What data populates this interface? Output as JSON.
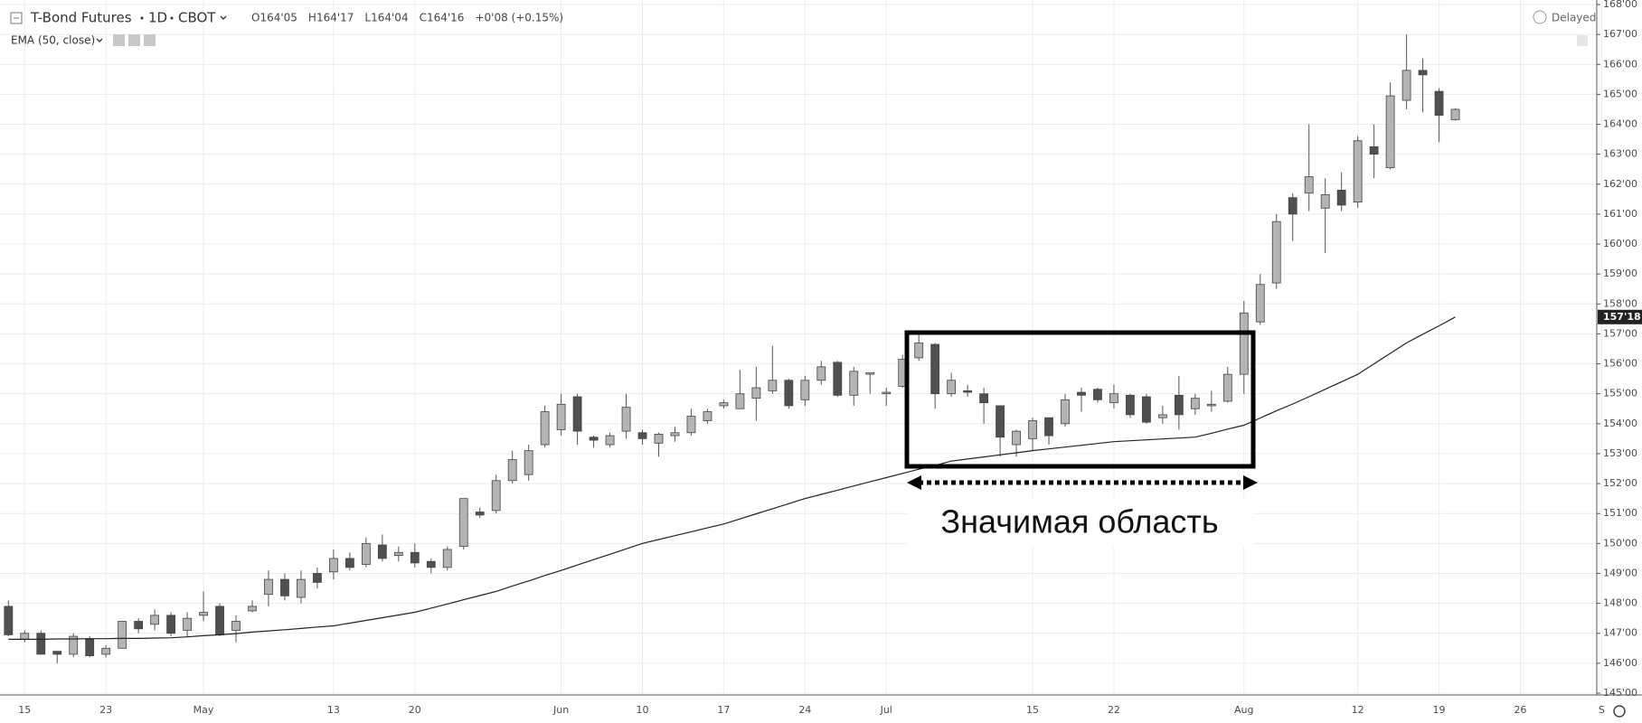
{
  "chart_data": {
    "type": "candlestick",
    "symbol": "T-Bond Futures",
    "interval": "1D",
    "exchange": "CBOT",
    "ohlc_labels": [
      "O164'05",
      "H164'17",
      "L164'04",
      "C164'16",
      "+0'08 (+0.15%)"
    ],
    "status": "Delayed",
    "annotation": "Значимая область",
    "up_color": "#b4b4b4",
    "down_color": "#505050",
    "grid": true,
    "categories": [
      null,
      "15",
      null,
      null,
      null,
      null,
      "23",
      null,
      null,
      null,
      null,
      null,
      "May",
      null,
      null,
      null,
      null,
      null,
      null,
      null,
      "13",
      null,
      null,
      null,
      null,
      "20",
      null,
      null,
      null,
      null,
      null,
      null,
      null,
      null,
      "Jun",
      null,
      null,
      null,
      null,
      "10",
      null,
      null,
      null,
      null,
      "17",
      null,
      null,
      null,
      null,
      "24",
      null,
      null,
      null,
      null,
      "Jul",
      null,
      null,
      null,
      null,
      null,
      null,
      null,
      null,
      "15",
      null,
      null,
      null,
      null,
      "22",
      null,
      null,
      null,
      null,
      null,
      null,
      null,
      "Aug",
      null,
      null,
      null,
      null,
      null,
      null,
      "12",
      null,
      null,
      null,
      null,
      "19",
      null,
      null,
      null,
      null,
      "26",
      null,
      null,
      null,
      null,
      "S"
    ],
    "open": [
      147.9,
      146.8,
      147.0,
      146.4,
      146.3,
      146.8,
      146.3,
      146.5,
      147.4,
      147.3,
      147.6,
      147.1,
      147.6,
      147.9,
      147.1,
      147.75,
      148.3,
      148.8,
      148.2,
      149.0,
      149.05,
      149.5,
      149.3,
      149.95,
      149.6,
      149.7,
      149.4,
      149.2,
      149.9,
      151.05,
      151.1,
      152.1,
      152.3,
      153.3,
      153.8,
      154.9,
      153.55,
      153.3,
      153.75,
      153.7,
      153.35,
      153.6,
      153.7,
      154.1,
      154.6,
      154.5,
      154.85,
      155.1,
      155.45,
      154.8,
      155.45,
      156.05,
      154.95,
      155.65,
      155.0,
      155.25,
      156.2,
      156.65,
      155.0,
      155.1,
      155.0,
      154.6,
      153.3,
      153.5,
      154.2,
      154.0,
      155.05,
      155.15,
      154.7,
      154.95,
      154.9,
      154.2,
      154.95,
      154.5,
      154.6,
      154.75,
      155.65,
      157.4,
      158.7,
      161.55,
      161.7,
      161.2,
      161.8,
      161.4,
      163.25,
      162.55,
      164.8,
      165.8,
      165.1,
      164.15625,
      null,
      null,
      null,
      null,
      null,
      null,
      null,
      null,
      null
    ],
    "high": [
      148.1,
      147.1,
      147.1,
      146.4,
      147.0,
      146.9,
      146.6,
      147.4,
      147.5,
      147.8,
      147.7,
      147.7,
      148.4,
      148.0,
      147.6,
      148.1,
      149.1,
      149.0,
      149.1,
      149.2,
      149.8,
      149.7,
      150.2,
      150.3,
      149.9,
      150.0,
      149.5,
      149.9,
      151.5,
      151.2,
      152.3,
      153.1,
      153.3,
      154.6,
      155.0,
      155.0,
      153.6,
      153.7,
      155.0,
      153.8,
      153.7,
      153.9,
      154.5,
      154.5,
      154.8,
      155.8,
      155.9,
      156.6,
      155.5,
      155.6,
      156.1,
      156.1,
      155.9,
      155.7,
      155.2,
      156.3,
      157.0,
      156.7,
      155.7,
      155.3,
      155.2,
      154.6,
      153.8,
      154.2,
      154.2,
      155.0,
      155.2,
      155.2,
      155.3,
      155.0,
      155.0,
      154.6,
      155.6,
      155.0,
      155.1,
      155.9,
      158.1,
      159.0,
      161.0,
      161.7,
      164.0,
      162.2,
      162.4,
      163.6,
      164.0,
      165.4,
      167.0,
      166.2,
      165.2,
      164.53125,
      null,
      null,
      null,
      null,
      null,
      null,
      null,
      null,
      null
    ],
    "low": [
      146.9,
      146.7,
      146.3,
      146.0,
      146.2,
      146.2,
      146.2,
      146.5,
      147.0,
      147.1,
      146.9,
      146.9,
      147.4,
      146.9,
      146.7,
      147.7,
      147.9,
      148.1,
      148.0,
      148.5,
      148.8,
      149.1,
      149.2,
      149.4,
      149.4,
      149.2,
      149.0,
      149.1,
      149.8,
      150.85,
      151.0,
      152.0,
      152.1,
      153.2,
      153.6,
      153.3,
      153.2,
      153.2,
      153.5,
      153.3,
      152.9,
      153.4,
      153.6,
      154.0,
      154.5,
      154.5,
      154.1,
      155.0,
      154.5,
      154.6,
      155.3,
      154.9,
      154.6,
      155.0,
      154.6,
      155.2,
      156.1,
      154.5,
      154.9,
      154.9,
      154.0,
      152.9,
      152.9,
      153.1,
      153.3,
      153.9,
      154.4,
      154.7,
      154.5,
      154.2,
      154.0,
      154.0,
      153.8,
      154.3,
      154.4,
      154.7,
      155.0,
      157.3,
      158.5,
      160.1,
      161.1,
      159.7,
      161.1,
      161.2,
      162.2,
      162.5,
      164.5,
      164.4,
      163.4,
      164.125,
      null,
      null,
      null,
      null,
      null,
      null,
      null,
      null,
      null
    ],
    "close": [
      146.95,
      147.0,
      146.3,
      146.3,
      146.9,
      146.25,
      146.5,
      147.4,
      147.15,
      147.6,
      147.0,
      147.5,
      147.7,
      146.95,
      147.4,
      147.9,
      148.8,
      148.25,
      148.8,
      148.7,
      149.5,
      149.2,
      150.0,
      149.5,
      149.7,
      149.35,
      149.2,
      149.8,
      151.5,
      150.95,
      152.1,
      152.8,
      153.1,
      154.4,
      154.65,
      153.75,
      153.45,
      153.6,
      154.55,
      153.5,
      153.65,
      153.7,
      154.25,
      154.4,
      154.7,
      155.0,
      155.2,
      155.45,
      154.6,
      155.45,
      155.9,
      154.95,
      155.75,
      155.7,
      155.05,
      156.15,
      156.7,
      155.0,
      155.45,
      155.05,
      154.7,
      153.55,
      153.75,
      154.1,
      153.6,
      154.8,
      154.95,
      154.8,
      155.0,
      154.3,
      154.05,
      154.3,
      154.3,
      154.85,
      154.65,
      155.65,
      157.7,
      158.65,
      160.75,
      161.0,
      162.25,
      161.65,
      161.3,
      163.45,
      163.0,
      164.95,
      165.8,
      165.65,
      164.3,
      164.5,
      null,
      null,
      null,
      null,
      null,
      null,
      null,
      null,
      null
    ],
    "ema": {
      "name": "EMA (50, close)",
      "color": "#222222",
      "last": {
        "value": 157.5625,
        "label": "157'18"
      },
      "values": [
        146.8,
        146.8,
        146.8,
        146.81,
        146.81,
        146.82,
        146.82,
        146.83,
        146.83,
        146.84,
        146.85,
        146.88,
        146.92,
        146.95,
        146.99,
        147.04,
        147.08,
        147.12,
        147.16,
        147.21,
        147.25,
        147.34,
        147.43,
        147.52,
        147.61,
        147.7,
        147.84,
        147.98,
        148.12,
        148.26,
        148.4,
        148.58,
        148.75,
        148.93,
        149.1,
        149.28,
        149.46,
        149.64,
        149.82,
        150.0,
        150.13,
        150.26,
        150.39,
        150.52,
        150.65,
        150.82,
        150.99,
        151.16,
        151.33,
        151.5,
        151.64,
        151.78,
        151.92,
        152.06,
        152.2,
        152.34,
        152.48,
        152.61,
        152.75,
        152.82,
        152.89,
        152.96,
        153.03,
        153.1,
        153.16,
        153.22,
        153.28,
        153.34,
        153.4,
        153.43,
        153.46,
        153.49,
        153.52,
        153.55,
        153.68,
        153.82,
        153.95,
        154.19,
        154.43,
        154.66,
        154.9,
        155.15,
        155.4,
        155.65,
        156.0,
        156.35,
        156.7,
        156.99,
        157.27,
        157.5625,
        null,
        null,
        null,
        null,
        null,
        null,
        null,
        null,
        null
      ]
    },
    "ylim": [
      145,
      168
    ],
    "yticks": [
      {
        "value": 145,
        "label": "145'00"
      },
      {
        "value": 146,
        "label": "146'00"
      },
      {
        "value": 147,
        "label": "147'00"
      },
      {
        "value": 148,
        "label": "148'00"
      },
      {
        "value": 149,
        "label": "149'00"
      },
      {
        "value": 150,
        "label": "150'00"
      },
      {
        "value": 151,
        "label": "151'00"
      },
      {
        "value": 152,
        "label": "152'00"
      },
      {
        "value": 153,
        "label": "153'00"
      },
      {
        "value": 154,
        "label": "154'00"
      },
      {
        "value": 155,
        "label": "155'00"
      },
      {
        "value": 156,
        "label": "156'00"
      },
      {
        "value": 157,
        "label": "157'00"
      },
      {
        "value": 158,
        "label": "158'00"
      },
      {
        "value": 159,
        "label": "159'00"
      },
      {
        "value": 160,
        "label": "160'00"
      },
      {
        "value": 161,
        "label": "161'00"
      },
      {
        "value": 162,
        "label": "162'00"
      },
      {
        "value": 163,
        "label": "163'00"
      },
      {
        "value": 164,
        "label": "164'00"
      },
      {
        "value": 165,
        "label": "165'00"
      },
      {
        "value": 166,
        "label": "166'00"
      },
      {
        "value": 167,
        "label": "167'00"
      },
      {
        "value": 168,
        "label": "168'00"
      }
    ]
  }
}
